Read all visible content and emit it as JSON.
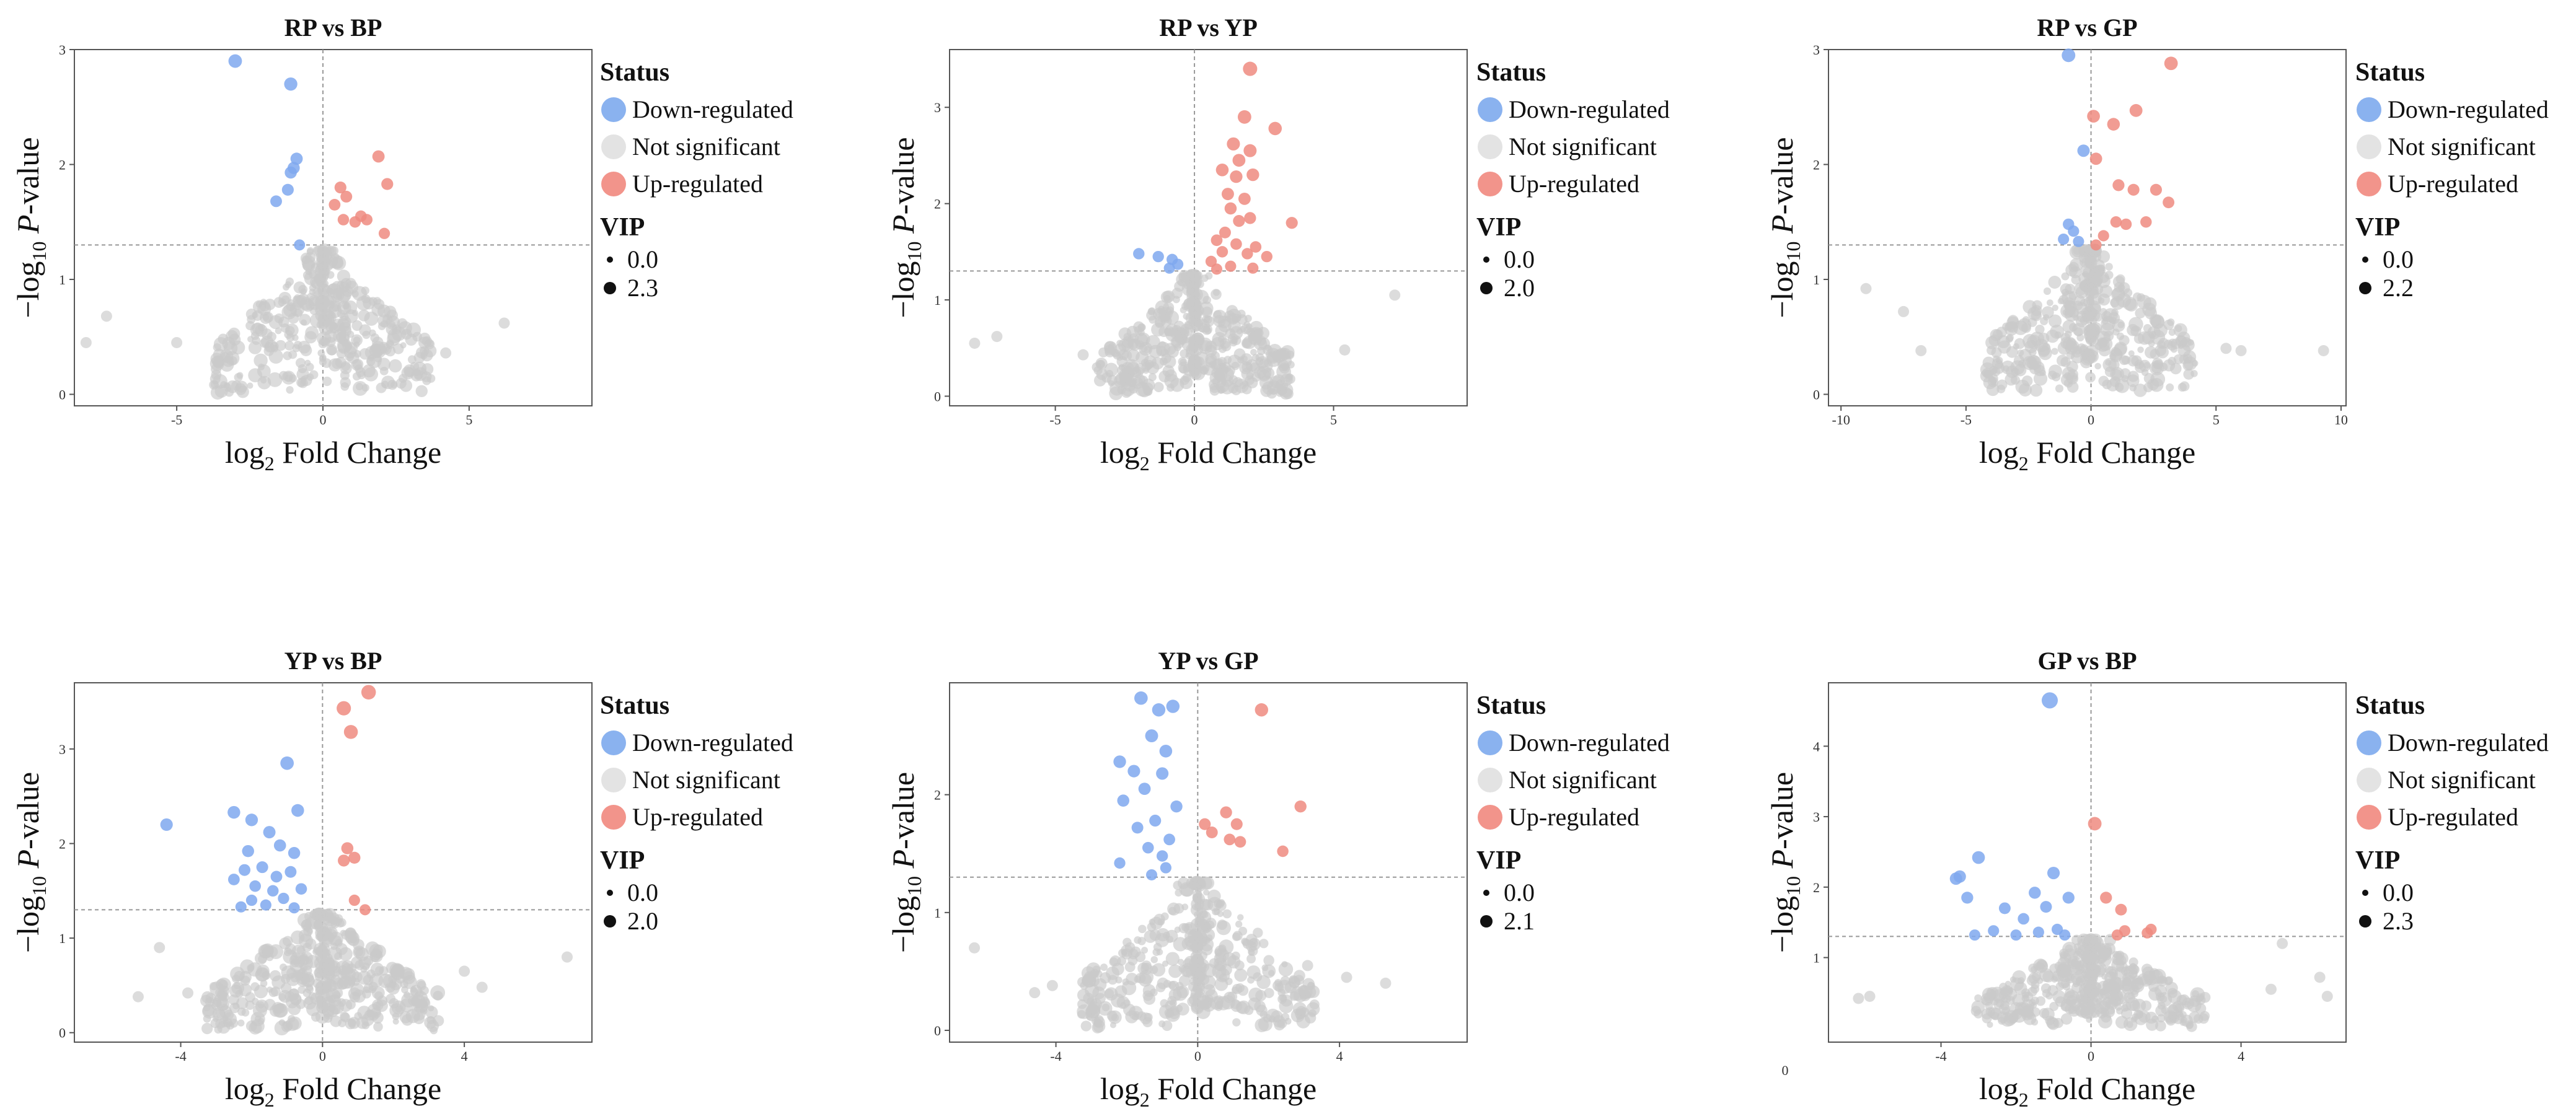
{
  "figure": {
    "legend": {
      "status_title": "Status",
      "status_items": [
        "Down-regulated",
        "Not significant",
        "Up-regulated"
      ],
      "status_colors": [
        "#8ab2ef",
        "#e3e3e3",
        "#f2948b"
      ],
      "vip_title": "VIP"
    },
    "colors": {
      "down": "#7fa8ee",
      "ns": "#c9c9c9",
      "up": "#ef8b80",
      "frame": "#555555",
      "guide": "#999999"
    },
    "stray_label": "0"
  },
  "chart_data": [
    {
      "type": "scatter",
      "title": "RP vs BP",
      "xlabel": "log2 Fold Change",
      "ylabel": "-log10 P-value",
      "xlim": [
        -8.5,
        9.2
      ],
      "ylim": [
        -0.1,
        3.0
      ],
      "xticks": [
        -5,
        0,
        5
      ],
      "yticks": [
        0,
        1,
        2,
        3
      ],
      "vline": 0,
      "hline": 1.3,
      "vip_labels": [
        "0.0",
        "2.3"
      ],
      "down": [
        [
          -3.0,
          2.9
        ],
        [
          -1.1,
          2.7
        ],
        [
          -0.9,
          2.05
        ],
        [
          -1.0,
          1.97
        ],
        [
          -1.1,
          1.93
        ],
        [
          -1.6,
          1.68
        ],
        [
          -1.2,
          1.78
        ],
        [
          -0.8,
          1.3
        ]
      ],
      "up": [
        [
          1.9,
          2.07
        ],
        [
          2.2,
          1.83
        ],
        [
          0.6,
          1.8
        ],
        [
          0.8,
          1.72
        ],
        [
          0.4,
          1.65
        ],
        [
          1.3,
          1.55
        ],
        [
          1.1,
          1.5
        ],
        [
          0.7,
          1.52
        ],
        [
          1.5,
          1.52
        ],
        [
          2.1,
          1.4
        ]
      ],
      "ns_seed": 11,
      "ns_count": 420,
      "ns_spread": 1.7,
      "ns_extremes": [
        [
          -8.1,
          0.45
        ],
        [
          -7.4,
          0.68
        ],
        [
          6.2,
          0.62
        ],
        [
          3.3,
          0.32
        ],
        [
          4.2,
          0.36
        ],
        [
          -5.0,
          0.45
        ]
      ]
    },
    {
      "type": "scatter",
      "title": "RP vs YP",
      "xlabel": "log2 Fold Change",
      "ylabel": "-log10 P-value",
      "xlim": [
        -8.8,
        9.8
      ],
      "ylim": [
        -0.1,
        3.6
      ],
      "xticks": [
        -5,
        0,
        5
      ],
      "yticks": [
        0,
        1,
        2,
        3
      ],
      "vline": 0,
      "hline": 1.3,
      "vip_labels": [
        "0.0",
        "2.0"
      ],
      "down": [
        [
          -2.0,
          1.48
        ],
        [
          -1.3,
          1.45
        ],
        [
          -0.8,
          1.42
        ],
        [
          -0.6,
          1.37
        ],
        [
          -0.9,
          1.33
        ]
      ],
      "up": [
        [
          2.0,
          3.4
        ],
        [
          1.8,
          2.9
        ],
        [
          2.9,
          2.78
        ],
        [
          1.4,
          2.62
        ],
        [
          2.0,
          2.55
        ],
        [
          1.6,
          2.45
        ],
        [
          1.0,
          2.35
        ],
        [
          1.5,
          2.28
        ],
        [
          2.1,
          2.3
        ],
        [
          1.2,
          2.1
        ],
        [
          1.8,
          2.05
        ],
        [
          1.3,
          1.95
        ],
        [
          2.0,
          1.85
        ],
        [
          1.6,
          1.82
        ],
        [
          3.5,
          1.8
        ],
        [
          1.1,
          1.7
        ],
        [
          0.8,
          1.62
        ],
        [
          1.5,
          1.58
        ],
        [
          2.2,
          1.55
        ],
        [
          1.0,
          1.5
        ],
        [
          1.9,
          1.48
        ],
        [
          2.6,
          1.45
        ],
        [
          0.6,
          1.4
        ],
        [
          1.3,
          1.35
        ],
        [
          2.1,
          1.33
        ],
        [
          0.8,
          1.32
        ]
      ],
      "ns_seed": 23,
      "ns_count": 440,
      "ns_spread": 1.6,
      "ns_extremes": [
        [
          -7.9,
          0.55
        ],
        [
          -7.1,
          0.62
        ],
        [
          -4.0,
          0.43
        ],
        [
          7.2,
          1.05
        ],
        [
          5.4,
          0.48
        ],
        [
          -2.0,
          0.72
        ]
      ]
    },
    {
      "type": "scatter",
      "title": "RP vs GP",
      "xlabel": "log2 Fold Change",
      "ylabel": "-log10 P-value",
      "xlim": [
        -10.5,
        10.2
      ],
      "ylim": [
        -0.1,
        3.0
      ],
      "xticks": [
        -10,
        -5,
        0,
        5,
        10
      ],
      "yticks": [
        0,
        1,
        2,
        3
      ],
      "vline": 0,
      "hline": 1.3,
      "vip_labels": [
        "0.0",
        "2.2"
      ],
      "down": [
        [
          -0.9,
          2.95
        ],
        [
          -0.3,
          2.12
        ],
        [
          -0.9,
          1.48
        ],
        [
          -0.7,
          1.42
        ],
        [
          -1.1,
          1.35
        ],
        [
          -0.5,
          1.33
        ]
      ],
      "up": [
        [
          3.2,
          2.88
        ],
        [
          1.8,
          2.47
        ],
        [
          0.1,
          2.42
        ],
        [
          0.9,
          2.35
        ],
        [
          0.2,
          2.05
        ],
        [
          1.1,
          1.82
        ],
        [
          1.7,
          1.78
        ],
        [
          2.6,
          1.78
        ],
        [
          1.0,
          1.5
        ],
        [
          2.2,
          1.5
        ],
        [
          1.4,
          1.48
        ],
        [
          3.1,
          1.67
        ],
        [
          0.5,
          1.38
        ],
        [
          0.2,
          1.3
        ]
      ],
      "ns_seed": 37,
      "ns_count": 430,
      "ns_spread": 1.9,
      "ns_extremes": [
        [
          -9.0,
          0.92
        ],
        [
          -7.5,
          0.72
        ],
        [
          -6.8,
          0.38
        ],
        [
          9.3,
          0.38
        ],
        [
          5.4,
          0.4
        ],
        [
          6.0,
          0.38
        ]
      ]
    },
    {
      "type": "scatter",
      "title": "YP vs BP",
      "xlabel": "log2 Fold Change",
      "ylabel": "-log10 P-value",
      "xlim": [
        -7.0,
        7.6
      ],
      "ylim": [
        -0.1,
        3.7
      ],
      "xticks": [
        -4,
        0,
        4
      ],
      "yticks": [
        0,
        1,
        2,
        3
      ],
      "vline": 0,
      "hline": 1.3,
      "vip_labels": [
        "0.0",
        "2.0"
      ],
      "down": [
        [
          -4.4,
          2.2
        ],
        [
          -2.5,
          2.33
        ],
        [
          -1.0,
          2.85
        ],
        [
          -2.0,
          2.25
        ],
        [
          -0.7,
          2.35
        ],
        [
          -1.5,
          2.12
        ],
        [
          -2.1,
          1.92
        ],
        [
          -1.2,
          1.98
        ],
        [
          -0.8,
          1.9
        ],
        [
          -2.2,
          1.72
        ],
        [
          -1.7,
          1.75
        ],
        [
          -1.3,
          1.65
        ],
        [
          -0.9,
          1.7
        ],
        [
          -2.5,
          1.62
        ],
        [
          -1.9,
          1.55
        ],
        [
          -1.4,
          1.5
        ],
        [
          -0.6,
          1.52
        ],
        [
          -2.0,
          1.4
        ],
        [
          -1.1,
          1.42
        ],
        [
          -1.6,
          1.35
        ],
        [
          -0.8,
          1.32
        ],
        [
          -2.3,
          1.33
        ]
      ],
      "up": [
        [
          1.3,
          3.6
        ],
        [
          0.6,
          3.43
        ],
        [
          0.8,
          3.18
        ],
        [
          0.7,
          1.95
        ],
        [
          0.9,
          1.85
        ],
        [
          0.6,
          1.82
        ],
        [
          0.9,
          1.4
        ],
        [
          1.2,
          1.3
        ]
      ],
      "ns_seed": 51,
      "ns_count": 450,
      "ns_spread": 1.5,
      "ns_extremes": [
        [
          -5.2,
          0.38
        ],
        [
          -4.6,
          0.9
        ],
        [
          4.5,
          0.48
        ],
        [
          6.9,
          0.8
        ],
        [
          4.0,
          0.65
        ],
        [
          -3.8,
          0.42
        ]
      ]
    },
    {
      "type": "scatter",
      "title": "YP vs GP",
      "xlabel": "log2 Fold Change",
      "ylabel": "-log10 P-value",
      "xlim": [
        -7.0,
        7.6
      ],
      "ylim": [
        -0.1,
        2.95
      ],
      "xticks": [
        -4,
        0,
        4
      ],
      "yticks": [
        0,
        1,
        2
      ],
      "vline": 0,
      "hline": 1.3,
      "vip_labels": [
        "0.0",
        "2.1"
      ],
      "down": [
        [
          -1.6,
          2.82
        ],
        [
          -1.1,
          2.72
        ],
        [
          -0.7,
          2.75
        ],
        [
          -1.3,
          2.5
        ],
        [
          -0.9,
          2.37
        ],
        [
          -2.2,
          2.28
        ],
        [
          -1.8,
          2.2
        ],
        [
          -1.0,
          2.18
        ],
        [
          -1.5,
          2.05
        ],
        [
          -2.1,
          1.95
        ],
        [
          -0.6,
          1.9
        ],
        [
          -1.2,
          1.78
        ],
        [
          -1.7,
          1.72
        ],
        [
          -0.8,
          1.62
        ],
        [
          -1.4,
          1.55
        ],
        [
          -2.2,
          1.42
        ],
        [
          -1.0,
          1.48
        ],
        [
          -0.9,
          1.38
        ],
        [
          -1.3,
          1.32
        ]
      ],
      "up": [
        [
          1.8,
          2.72
        ],
        [
          2.9,
          1.9
        ],
        [
          0.8,
          1.85
        ],
        [
          0.2,
          1.75
        ],
        [
          1.1,
          1.75
        ],
        [
          0.4,
          1.68
        ],
        [
          0.9,
          1.62
        ],
        [
          1.2,
          1.6
        ],
        [
          2.4,
          1.52
        ]
      ],
      "ns_seed": 67,
      "ns_count": 430,
      "ns_spread": 1.5,
      "ns_extremes": [
        [
          -6.3,
          0.7
        ],
        [
          -4.6,
          0.32
        ],
        [
          -4.1,
          0.38
        ],
        [
          5.3,
          0.4
        ],
        [
          3.1,
          0.55
        ],
        [
          4.2,
          0.45
        ]
      ]
    },
    {
      "type": "scatter",
      "title": "GP vs BP",
      "xlabel": "log2 Fold Change",
      "ylabel": "-log10 P-value",
      "xlim": [
        -7.0,
        6.8
      ],
      "ylim": [
        -0.2,
        4.9
      ],
      "xticks": [
        -4,
        0,
        4
      ],
      "yticks": [
        1,
        2,
        3,
        4
      ],
      "vline": 0,
      "hline": 1.3,
      "vip_labels": [
        "0.0",
        "2.3"
      ],
      "down": [
        [
          -1.1,
          4.65
        ],
        [
          -3.5,
          2.15
        ],
        [
          -3.6,
          2.12
        ],
        [
          -3.0,
          2.42
        ],
        [
          -1.0,
          2.2
        ],
        [
          -3.3,
          1.85
        ],
        [
          -1.5,
          1.92
        ],
        [
          -0.6,
          1.85
        ],
        [
          -1.2,
          1.72
        ],
        [
          -2.3,
          1.7
        ],
        [
          -1.8,
          1.55
        ],
        [
          -2.6,
          1.38
        ],
        [
          -0.9,
          1.4
        ],
        [
          -1.4,
          1.36
        ],
        [
          -3.1,
          1.32
        ],
        [
          -2.0,
          1.32
        ],
        [
          -0.7,
          1.32
        ]
      ],
      "up": [
        [
          0.1,
          2.9
        ],
        [
          0.4,
          1.85
        ],
        [
          0.8,
          1.68
        ],
        [
          1.6,
          1.4
        ],
        [
          1.5,
          1.35
        ],
        [
          0.9,
          1.38
        ],
        [
          0.7,
          1.32
        ]
      ],
      "ns_seed": 83,
      "ns_count": 420,
      "ns_spread": 1.4,
      "ns_extremes": [
        [
          -6.2,
          0.42
        ],
        [
          -5.9,
          0.45
        ],
        [
          5.1,
          1.2
        ],
        [
          6.1,
          0.72
        ],
        [
          6.3,
          0.45
        ],
        [
          4.8,
          0.55
        ]
      ]
    }
  ]
}
